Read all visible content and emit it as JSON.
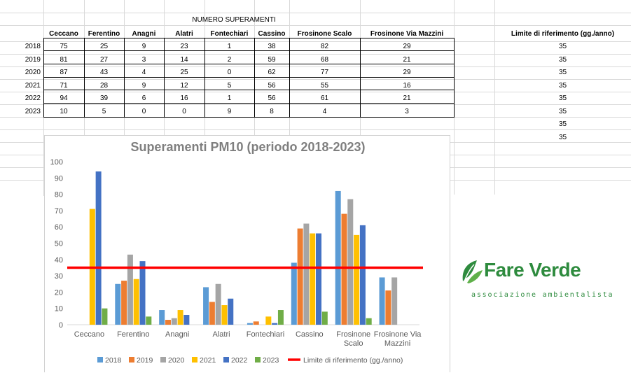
{
  "sheet": {
    "table_title": "NUMERO SUPERAMENTI",
    "columns": [
      "Ceccano",
      "Ferentino",
      "Anagni",
      "Alatri",
      "Fontechiari",
      "Cassino",
      "Frosinone Scalo",
      "Frosinone Via Mazzini"
    ],
    "rows": [
      {
        "year": "2018",
        "values": [
          "75",
          "25",
          "9",
          "23",
          "1",
          "38",
          "82",
          "29"
        ]
      },
      {
        "year": "2019",
        "values": [
          "81",
          "27",
          "3",
          "14",
          "2",
          "59",
          "68",
          "21"
        ]
      },
      {
        "year": "2020",
        "values": [
          "87",
          "43",
          "4",
          "25",
          "0",
          "62",
          "77",
          "29"
        ]
      },
      {
        "year": "2021",
        "values": [
          "71",
          "28",
          "9",
          "12",
          "5",
          "56",
          "55",
          "16"
        ]
      },
      {
        "year": "2022",
        "values": [
          "94",
          "39",
          "6",
          "16",
          "1",
          "56",
          "61",
          "21"
        ]
      },
      {
        "year": "2023",
        "values": [
          "10",
          "5",
          "0",
          "0",
          "9",
          "8",
          "4",
          "3"
        ]
      }
    ],
    "limit_header": "Limite di riferimento (gg./anno)",
    "limit_values": [
      "35",
      "35",
      "35",
      "35",
      "35",
      "35",
      "35",
      "35"
    ]
  },
  "chart_data": {
    "type": "bar",
    "title": "Superamenti  PM10 (periodo 2018-2023)",
    "categories": [
      "Ceccano",
      "Ferentino",
      "Anagni",
      "Alatri",
      "Fontechiari",
      "Cassino",
      "Frosinone Scalo",
      "Frosinone Via Mazzini"
    ],
    "series": [
      {
        "name": "2018",
        "color": "#5b9bd5",
        "values": [
          null,
          25,
          9,
          23,
          1,
          38,
          82,
          29
        ]
      },
      {
        "name": "2019",
        "color": "#ed7d31",
        "values": [
          null,
          27,
          3,
          14,
          2,
          59,
          68,
          21
        ]
      },
      {
        "name": "2020",
        "color": "#a5a5a5",
        "values": [
          null,
          43,
          4,
          25,
          0,
          62,
          77,
          29
        ]
      },
      {
        "name": "2021",
        "color": "#ffc000",
        "values": [
          71,
          28,
          9,
          12,
          5,
          56,
          55,
          null
        ]
      },
      {
        "name": "2022",
        "color": "#4472c4",
        "values": [
          94,
          39,
          6,
          16,
          1,
          56,
          61,
          null
        ]
      },
      {
        "name": "2023",
        "color": "#70ad47",
        "values": [
          10,
          5,
          0,
          0,
          9,
          8,
          4,
          null
        ]
      }
    ],
    "reference_line": {
      "name": "Limite di riferimento (gg./anno)",
      "value": 35,
      "color": "#ff0000"
    },
    "yticks": [
      "0",
      "10",
      "20",
      "30",
      "40",
      "50",
      "60",
      "70",
      "80",
      "90",
      "100"
    ],
    "ylim": [
      0,
      100
    ],
    "grid": false,
    "legend": "bottom"
  },
  "logo": {
    "name": "Fare Verde",
    "subtitle": "associazione ambientalista",
    "color": "#2e8b3e"
  }
}
